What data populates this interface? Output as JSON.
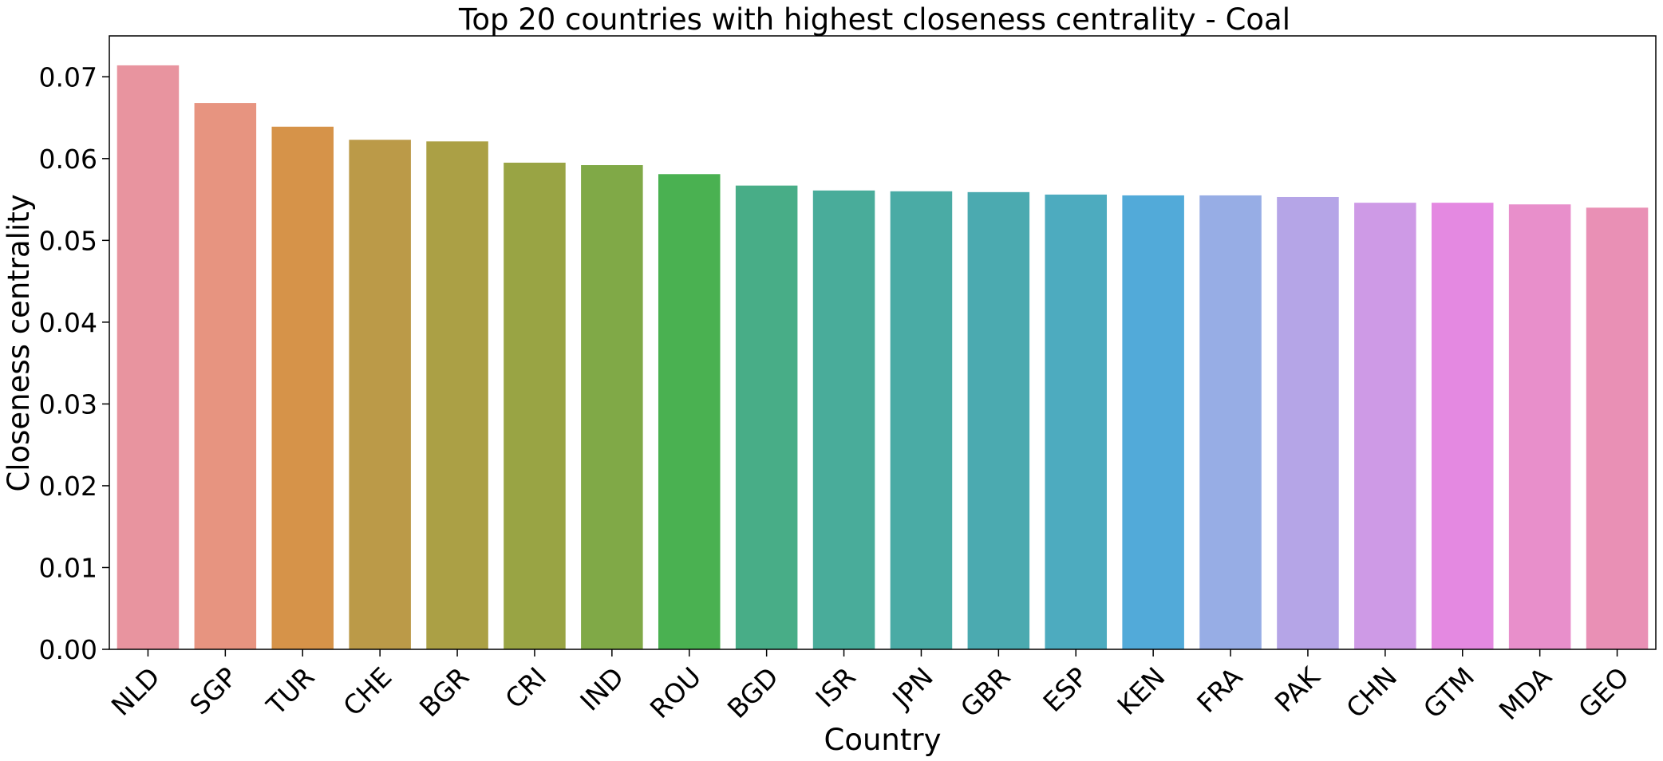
{
  "chart_data": {
    "type": "bar",
    "title": "Top 20 countries with highest closeness centrality - Coal",
    "xlabel": "Country",
    "ylabel": "Closeness centrality",
    "ylim": [
      0,
      0.075
    ],
    "yticks": [
      "0.00",
      "0.01",
      "0.02",
      "0.03",
      "0.04",
      "0.05",
      "0.06",
      "0.07"
    ],
    "grid": false,
    "categories": [
      "NLD",
      "SGP",
      "TUR",
      "CHE",
      "BGR",
      "CRI",
      "IND",
      "ROU",
      "BGD",
      "ISR",
      "JPN",
      "GBR",
      "ESP",
      "KEN",
      "FRA",
      "PAK",
      "CHN",
      "GTM",
      "MDA",
      "GEO"
    ],
    "values": [
      0.0714,
      0.0668,
      0.0639,
      0.0623,
      0.0621,
      0.0595,
      0.0592,
      0.0581,
      0.0567,
      0.0561,
      0.056,
      0.0559,
      0.0556,
      0.0555,
      0.0555,
      0.0553,
      0.0546,
      0.0546,
      0.0544,
      0.054
    ],
    "colors": [
      "#e8949f",
      "#e79480",
      "#d69349",
      "#bb9a48",
      "#aba045",
      "#99a444",
      "#80a947",
      "#4ab151",
      "#48ad87",
      "#49ac9a",
      "#4aaba5",
      "#4baab0",
      "#4dabbf",
      "#52aad9",
      "#97ade5",
      "#b5a5e7",
      "#ce9ae6",
      "#e489e1",
      "#e88fcb",
      "#e990b5"
    ]
  }
}
